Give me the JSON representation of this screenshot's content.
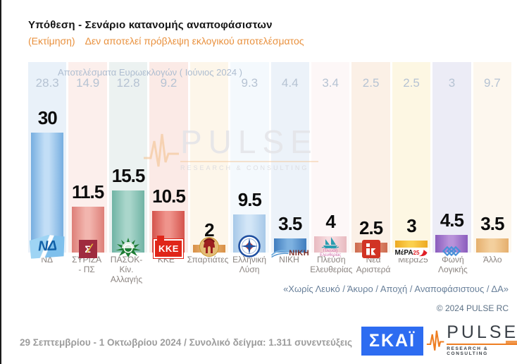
{
  "header": {
    "title": "Υπόθεση - Σενάριο κατανομής αναποφάσιστων",
    "subtitle_prefix": "(Εκτίμηση)",
    "subtitle": "Δεν αποτελεί πρόβλεψη εκλογικού αποτελέσματος"
  },
  "chart_data": {
    "type": "bar",
    "title": "Υπόθεση - Σενάριο κατανομής αναποφάσιστων",
    "subtitle": "(Εκτίμηση) Δεν αποτελεί πρόβλεψη εκλογικού αποτελέσματος",
    "euro_header": "Αποτελέσματα Ευρωεκλογών  ( Ιούνιος 2024 )",
    "ylim": [
      0,
      30
    ],
    "grid": false,
    "categories": [
      "ΝΔ",
      "ΣΥΡΙΖΑ - ΠΣ",
      "ΠΑΣΟΚ-Κίν. Αλλαγής",
      "ΚΚΕ",
      "Σπαρτιάτες",
      "Ελληνική Λύση",
      "ΝΙΚΗ",
      "Πλεύση Ελευθερίας",
      "Νέα Αριστερά",
      "Μέρα25",
      "Φωνή Λογικής",
      "Άλλο"
    ],
    "series": [
      {
        "name": "Εκτίμηση",
        "values": [
          30,
          11.5,
          15.5,
          10.5,
          2,
          9.5,
          3.5,
          4,
          2.5,
          3,
          4.5,
          3.5
        ]
      },
      {
        "name": "Αποτελέσματα Ευρωεκλογών (Ιούνιος 2024)",
        "values": [
          28.3,
          14.9,
          12.8,
          9.2,
          null,
          9.3,
          4.4,
          3.4,
          2.5,
          2.5,
          3,
          9.7
        ]
      }
    ],
    "parties": [
      {
        "name": "ΝΔ",
        "label_lines": [
          "ΝΔ"
        ],
        "value_label": "30",
        "value": 30,
        "euro_label": "28.3",
        "column_bg": "#e9f1f9",
        "bar_edge": "#76aee0",
        "bar_center": "#c2def6",
        "logo": "nd"
      },
      {
        "name": "ΣΥΡΙΖΑ - ΠΣ",
        "label_lines": [
          "ΣΥΡΙΖΑ",
          "- ΠΣ"
        ],
        "value_label": "11.5",
        "value": 11.5,
        "euro_label": "14.9",
        "column_bg": "#fcefec",
        "bar_edge": "#dd7f78",
        "bar_center": "#f2b5ae",
        "logo": "syriza"
      },
      {
        "name": "ΠΑΣΟΚ-Κίν. Αλλαγής",
        "label_lines": [
          "ΠΑΣΟΚ-Κίν.",
          "Αλλαγής"
        ],
        "value_label": "15.5",
        "value": 15.5,
        "euro_label": "12.8",
        "column_bg": "#ecf2f1",
        "bar_edge": "#6fb3a4",
        "bar_center": "#aad6cb",
        "logo": "pasok"
      },
      {
        "name": "ΚΚΕ",
        "label_lines": [
          "ΚΚΕ"
        ],
        "value_label": "10.5",
        "value": 10.5,
        "euro_label": "9.2",
        "column_bg": "#fbeae6",
        "bar_edge": "#d4534c",
        "bar_center": "#ef948c",
        "logo": "kke"
      },
      {
        "name": "Σπαρτιάτες",
        "label_lines": [
          "Σπαρτιάτες"
        ],
        "value_label": "2",
        "value": 2,
        "euro_label": "",
        "column_bg": "#fdf6ea",
        "bar_edge": "#d88f45",
        "bar_center": "#eebc7e",
        "logo": "spartiates"
      },
      {
        "name": "Ελληνική Λύση",
        "label_lines": [
          "Ελληνική",
          "Λύση"
        ],
        "value_label": "9.5",
        "value": 9.5,
        "euro_label": "9.3",
        "column_bg": "#f4f9fd",
        "bar_edge": "#a6c8e8",
        "bar_center": "#d3e6f7",
        "logo": "ellinikilysi"
      },
      {
        "name": "ΝΙΚΗ",
        "label_lines": [
          "ΝΙΚΗ"
        ],
        "value_label": "3.5",
        "value": 3.5,
        "euro_label": "4.4",
        "column_bg": "#ecf2f9",
        "bar_edge": "#3f7cbe",
        "bar_center": "#7db1e0",
        "logo": "niki"
      },
      {
        "name": "Πλεύση Ελευθερίας",
        "label_lines": [
          "Πλεύση",
          "Ελευθερίας"
        ],
        "value_label": "4",
        "value": 4,
        "euro_label": "3.4",
        "column_bg": "#fdf7f7",
        "bar_edge": "#e8b9bf",
        "bar_center": "#f7dde1",
        "logo": "plefsi"
      },
      {
        "name": "Νέα Αριστερά",
        "label_lines": [
          "Νέα",
          "Αριστερά"
        ],
        "value_label": "2.5",
        "value": 2.5,
        "euro_label": "2.5",
        "column_bg": "#fbf0e6",
        "bar_edge": "#cc6a4e",
        "bar_center": "#e89a7e",
        "logo": "neaaristera"
      },
      {
        "name": "Μέρα25",
        "label_lines": [
          "Μέρα25"
        ],
        "value_label": "3",
        "value": 3,
        "euro_label": "2.5",
        "column_bg": "#fdf7e3",
        "bar_edge": "#eda921",
        "bar_center": "#fbd04e",
        "logo": "mera25"
      },
      {
        "name": "Φωνή Λογικής",
        "label_lines": [
          "Φωνή",
          "Λογικής"
        ],
        "value_label": "4.5",
        "value": 4.5,
        "euro_label": "3",
        "column_bg": "#ececf6",
        "bar_edge": "#8a5cbd",
        "bar_center": "#b992da",
        "logo": "fonilogikis"
      },
      {
        "name": "Άλλο",
        "label_lines": [
          "Άλλο"
        ],
        "value_label": "3.5",
        "value": 3.5,
        "euro_label": "9.7",
        "column_bg": "#fdf7ee",
        "bar_edge": "#e5af6d",
        "bar_center": "#f3cf9d",
        "logo": "none"
      }
    ]
  },
  "watermark": {
    "brand": "PULSE",
    "caption": "RESEARCH & CONSULTING"
  },
  "notes": {
    "exclusions": "«Χωρίς Λευκό / Άκυρο / Αποχή / Αναποφάσιστους / ΔΑ»",
    "copyright": "© 2024 PULSE RC"
  },
  "footer": {
    "survey_info": "29 Σεπτεμβρίου - 1 Οκτωβρίου 2024  /  Συνολικό δείγμα:  1.311 συνεντεύξεις",
    "skai_logo_text": "ΣΚΑΪ",
    "pulse_logo_text": "PULSE",
    "pulse_logo_caption": "RESEARCH & CONSULTING"
  },
  "colors": {
    "subtitle_orange": "#e9913e",
    "euro_row_text": "#b6c3d3",
    "bar_value_text": "#0c0c0c",
    "party_label_text": "#8b8480",
    "note_text": "#69809a",
    "survey_text": "#9c9c9c",
    "skai_blue": "#2d6cf1",
    "pulse_orange": "#ee7e22"
  }
}
